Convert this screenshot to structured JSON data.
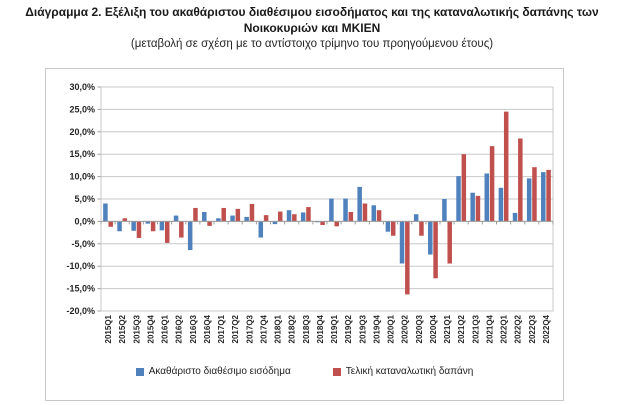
{
  "title_line1": "Διάγραμμα 2. Εξέλιξη του ακαθάριστου διαθέσιμου εισοδήματος και της καταναλωτικής δαπάνης των",
  "title_line2": "Νοικοκυριών και ΜΚΙΕΝ",
  "subtitle": "(μεταβολή σε σχέση με το αντίστοιχο τρίμηνο του προηγούμενου έτους)",
  "colors": {
    "series_income": "#4F81BD",
    "series_consumption": "#C0504D",
    "gridline": "#c8c8c8",
    "axis": "#9c9c9c",
    "label_text": "#262626",
    "box_border": "#c9c9c9"
  },
  "chart_data": {
    "type": "bar",
    "title": "Διάγραμμα 2. Εξέλιξη του ακαθάριστου διαθέσιμου εισοδήματος και της καταναλωτικής δαπάνης των Νοικοκυριών και ΜΚΙΕΝ",
    "subtitle": "(μεταβολή σε σχέση με το αντίστοιχο τρίμηνο του προηγούμενου έτους)",
    "xlabel": "",
    "ylabel": "",
    "ylim": [
      -20,
      30
    ],
    "ytick_step": 5,
    "ytick_labels": [
      "30,0%",
      "25,0%",
      "20,0%",
      "15,0%",
      "10,0%",
      "5,0%",
      "0,0%",
      "-5,0%",
      "-10,0%",
      "-15,0%",
      "-20,0%"
    ],
    "grid": true,
    "legend_position": "bottom",
    "categories": [
      "2015Q1",
      "2015Q2",
      "2015Q3",
      "2015Q4",
      "2016Q1",
      "2016Q2",
      "2016Q3",
      "2016Q4",
      "2017Q1",
      "2017Q2",
      "2017Q3",
      "2017Q4",
      "2018Q1",
      "2018Q2",
      "2018Q3",
      "2018Q4",
      "2019Q1",
      "2019Q2",
      "2019Q3",
      "2019Q4",
      "2020Q1",
      "2020Q2",
      "2020Q3",
      "2020Q4",
      "2021Q1",
      "2021Q2",
      "2021Q3",
      "2021Q4",
      "2022Q1",
      "2022Q2",
      "2022Q3",
      "2022Q4"
    ],
    "series": [
      {
        "key": "income",
        "name": "Ακαθάριστο διαθέσιμο εισόδημα",
        "color": "#4F81BD",
        "values": [
          4.0,
          -2.2,
          -2.1,
          -0.5,
          -2.0,
          1.3,
          -6.4,
          2.1,
          0.7,
          1.3,
          1.0,
          -3.6,
          -0.6,
          2.5,
          2.0,
          -0.2,
          5.1,
          5.1,
          7.7,
          3.6,
          -2.3,
          -9.4,
          1.6,
          -7.4,
          5.0,
          10.1,
          6.4,
          10.7,
          7.5,
          1.9,
          9.6,
          11.0
        ]
      },
      {
        "key": "consumption",
        "name": "Τελική καταναλωτική δαπάνη",
        "color": "#C0504D",
        "values": [
          -1.2,
          0.7,
          -3.7,
          -2.2,
          -4.8,
          -3.6,
          3.0,
          -1.0,
          3.0,
          2.8,
          3.9,
          1.4,
          2.2,
          1.6,
          3.2,
          -0.8,
          -1.1,
          2.1,
          4.0,
          2.5,
          -3.2,
          -16.3,
          -3.2,
          -12.7,
          -9.4,
          15.0,
          5.7,
          16.8,
          24.5,
          18.5,
          12.1,
          11.5
        ]
      }
    ]
  }
}
